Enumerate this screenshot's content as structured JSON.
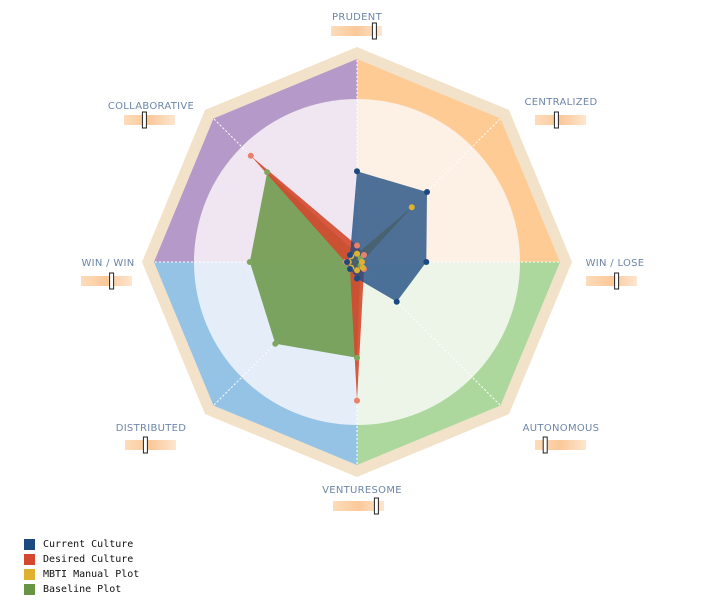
{
  "chart_data": {
    "type": "radar",
    "axes": [
      "PRUDENT",
      "CENTRALIZED",
      "WIN / LOSE",
      "AUTONOMOUS",
      "VENTURESOME",
      "DISTRIBUTED",
      "WIN / WIN",
      "COLLABORATIVE"
    ],
    "range": [
      0,
      1
    ],
    "sector_colors": [
      "#fecb94",
      "#fecb94",
      "#acd89e",
      "#acd89e",
      "#95c3e6",
      "#95c3e6",
      "#b59ac9",
      "#b59ac9"
    ],
    "inner_colors": [
      "#fdf0e4",
      "#fdf0e4",
      "#edf5e8",
      "#edf5e8",
      "#e5eef8",
      "#e5eef8",
      "#efe6f1",
      "#efe6f1"
    ],
    "slider_values": [
      0.85,
      0.42,
      0.6,
      0.2,
      0.85,
      0.4,
      0.6,
      0.4
    ],
    "series": [
      {
        "name": "Current Culture",
        "color": "#1c4a80",
        "values": [
          0.55,
          0.6,
          0.42,
          0.34,
          0.1,
          0.06,
          0.06,
          0.06
        ]
      },
      {
        "name": "Desired Culture",
        "color": "#d3482e",
        "values": [
          0.1,
          0.06,
          0.03,
          0.06,
          0.84,
          0.06,
          0.07,
          0.91
        ]
      },
      {
        "name": "MBTI Manual Plot",
        "color": "#e0b030",
        "values": [
          0.05,
          0.47,
          0.03,
          0.05,
          0.05,
          0.05,
          0.05,
          0.05
        ]
      },
      {
        "name": "Baseline Plot",
        "color": "#679544",
        "values": [
          0.05,
          0.03,
          0.03,
          0.03,
          0.58,
          0.7,
          0.65,
          0.77
        ]
      }
    ]
  }
}
